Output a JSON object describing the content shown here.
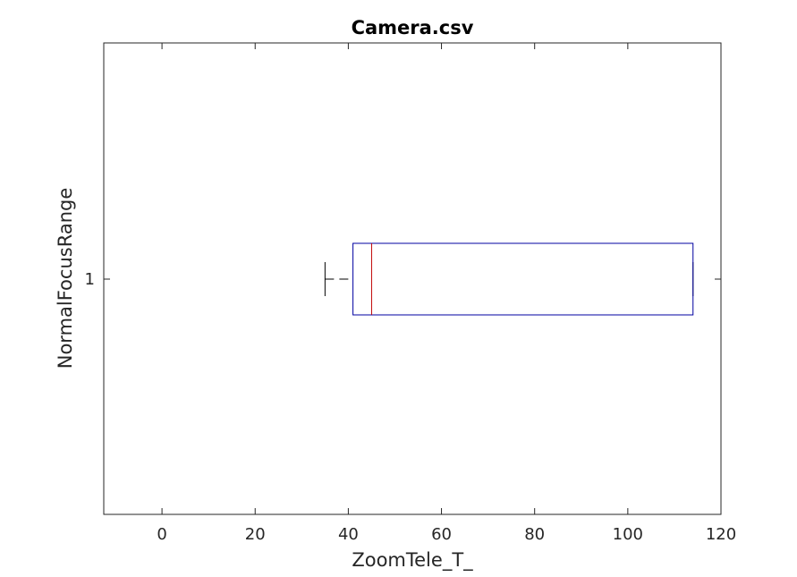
{
  "chart_data": {
    "type": "boxplot",
    "orientation": "horizontal",
    "title": "Camera.csv",
    "xlabel": "ZoomTele_T_",
    "ylabel": "NormalFocusRange",
    "xlim": [
      -12.5,
      120
    ],
    "xticks": [
      0,
      20,
      40,
      60,
      80,
      100,
      120
    ],
    "ytick_labels": [
      "1"
    ],
    "grid": false,
    "boxes": [
      {
        "category": "1",
        "whisker_low": 35,
        "q1": 41,
        "median": 45,
        "q3": 114,
        "whisker_high": 114
      }
    ],
    "colors": {
      "box": "#0000a0",
      "median": "#c00000",
      "whisker": "#000000",
      "axes": "#262626"
    }
  }
}
